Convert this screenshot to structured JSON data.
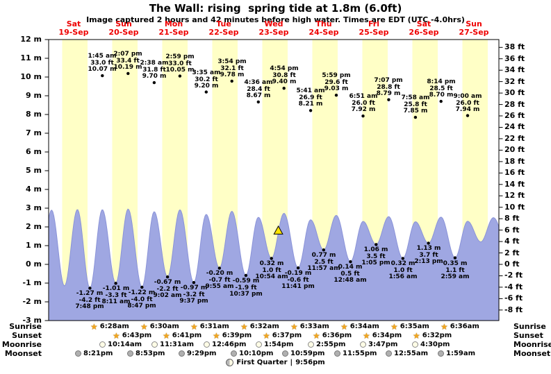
{
  "title": "The Wall: rising  spring tide at 1.8m (6.0ft)",
  "subtitle": "Image captured 2 hours and 42 minutes before high water. Times are EDT (UTC -4.0hrs)",
  "colors": {
    "day_label_red": "#ee0000",
    "daylight_band": "#ffffc6",
    "tide_fill": "#9fa7e2",
    "tide_edge": "#8a93d8",
    "marker_yellow": "#ffe400",
    "star_orange": "#f2a51d",
    "axis_black": "#000000"
  },
  "chart_data": {
    "type": "area",
    "title": "The Wall: rising  spring tide at 1.8m (6.0ft)",
    "y_axis_left": {
      "unit": "m",
      "min": -3,
      "max": 12,
      "step": 1
    },
    "y_axis_right": {
      "unit": "ft",
      "min": -8,
      "max": 38,
      "step": 2
    },
    "days": [
      {
        "name": "Sat",
        "date": "19-Sep"
      },
      {
        "name": "Sun",
        "date": "20-Sep"
      },
      {
        "name": "Mon",
        "date": "21-Sep"
      },
      {
        "name": "Tue",
        "date": "22-Sep"
      },
      {
        "name": "Wed",
        "date": "23-Sep"
      },
      {
        "name": "Thu",
        "date": "24-Sep"
      },
      {
        "name": "Fri",
        "date": "25-Sep"
      },
      {
        "name": "Sat",
        "date": "26-Sep"
      },
      {
        "name": "Sun",
        "date": "27-Sep"
      }
    ],
    "high_tides": [
      {
        "day": 1,
        "time": "1:45 am",
        "ft": 33.0,
        "m": 10.07
      },
      {
        "day": 1,
        "time": "2:07 pm",
        "ft": 33.4,
        "m": 10.19
      },
      {
        "day": 2,
        "time": "2:38 am",
        "ft": 31.8,
        "m": 9.7
      },
      {
        "day": 2,
        "time": "2:59 pm",
        "ft": 33.0,
        "m": 10.05
      },
      {
        "day": 3,
        "time": "3:35 am",
        "ft": 30.2,
        "m": 9.2
      },
      {
        "day": 3,
        "time": "3:54 pm",
        "ft": 32.1,
        "m": 9.78
      },
      {
        "day": 4,
        "time": "4:36 am",
        "ft": 28.4,
        "m": 8.67
      },
      {
        "day": 4,
        "time": "4:54 pm",
        "ft": 30.8,
        "m": 9.4
      },
      {
        "day": 5,
        "time": "5:41 am",
        "ft": 26.9,
        "m": 8.21
      },
      {
        "day": 5,
        "time": "5:59 pm",
        "ft": 29.6,
        "m": 9.03
      },
      {
        "day": 6,
        "time": "6:51 am",
        "ft": 26.0,
        "m": 7.92
      },
      {
        "day": 6,
        "time": "7:07 pm",
        "ft": 28.8,
        "m": 8.79
      },
      {
        "day": 7,
        "time": "7:58 am",
        "ft": 25.8,
        "m": 7.85
      },
      {
        "day": 7,
        "time": "8:14 pm",
        "ft": 28.5,
        "m": 8.7
      },
      {
        "day": 8,
        "time": "9:00 am",
        "ft": 26.0,
        "m": 7.94
      }
    ],
    "low_tides": [
      {
        "day": 0,
        "time": "7:48 pm",
        "ft": -4.2,
        "m": -1.27
      },
      {
        "day": 1,
        "time": "8:11 am",
        "ft": -3.3,
        "m": -1.01
      },
      {
        "day": 1,
        "time": "8:47 pm",
        "ft": -4.0,
        "m": -1.22
      },
      {
        "day": 2,
        "time": "9:02 am",
        "ft": -2.2,
        "m": -0.67
      },
      {
        "day": 2,
        "time": "9:37 pm",
        "ft": -3.2,
        "m": -0.97
      },
      {
        "day": 3,
        "time": "9:55 am",
        "ft": -0.7,
        "m": -0.2
      },
      {
        "day": 3,
        "time": "10:37 pm",
        "ft": -1.9,
        "m": -0.59
      },
      {
        "day": 4,
        "time": "10:54 am",
        "ft": 1.0,
        "m": 0.32
      },
      {
        "day": 4,
        "time": "11:41 pm",
        "ft": -0.6,
        "m": -0.19
      },
      {
        "day": 5,
        "time": "11:57 am",
        "ft": 2.5,
        "m": 0.77
      },
      {
        "day": 6,
        "time": "12:48 am",
        "ft": 0.5,
        "m": 0.14
      },
      {
        "day": 6,
        "time": "1:05 pm",
        "ft": 3.5,
        "m": 1.06
      },
      {
        "day": 7,
        "time": "1:56 am",
        "ft": 1.0,
        "m": 0.32
      },
      {
        "day": 7,
        "time": "2:13 pm",
        "ft": 3.7,
        "m": 1.13
      },
      {
        "day": 8,
        "time": "2:59 am",
        "ft": 1.1,
        "m": 0.35
      }
    ],
    "current_marker": {
      "level_m": 1.8,
      "hours_from_start": 110.2
    }
  },
  "astro": {
    "sunrise": {
      "label": "Sunrise",
      "times": [
        "6:28am",
        "6:30am",
        "6:31am",
        "6:32am",
        "6:33am",
        "6:34am",
        "6:35am",
        "6:36am"
      ]
    },
    "sunset": {
      "label": "Sunset",
      "times": [
        "6:43pm",
        "6:41pm",
        "6:39pm",
        "6:37pm",
        "6:36pm",
        "6:34pm",
        "6:32pm"
      ]
    },
    "moonrise": {
      "label": "Moonrise",
      "times": [
        "10:14am",
        "11:31am",
        "12:46pm",
        "1:54pm",
        "2:55pm",
        "3:47pm",
        "4:30pm"
      ]
    },
    "moonset": {
      "label": "Moonset",
      "times": [
        "8:21pm",
        "8:53pm",
        "9:29pm",
        "10:10pm",
        "10:59pm",
        "11:55pm",
        "12:55am",
        "1:59am"
      ]
    },
    "moon_phase": {
      "label": "First Quarter",
      "separator": "|",
      "time": "9:56pm"
    }
  }
}
